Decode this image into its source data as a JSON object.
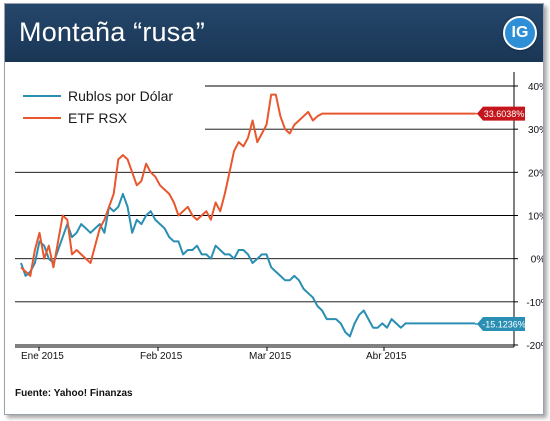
{
  "header": {
    "title": "Montaña “rusa”",
    "logo": "IG",
    "background": "#1f3d5f"
  },
  "source": "Fuente: Yahoo! Finanzas",
  "chart_data": {
    "type": "line",
    "title": "Montaña “rusa”",
    "xlabel": "",
    "ylabel": "",
    "x_tick_labels": [
      "Ene 2015",
      "Feb 2015",
      "Mar 2015",
      "Abr 2015"
    ],
    "y_tick_labels": [
      "40%",
      "30%",
      "20%",
      "10%",
      "0%",
      "-10%",
      "-20%"
    ],
    "y_ticks": [
      40,
      30,
      20,
      10,
      0,
      -10,
      -20
    ],
    "ylim": [
      -20,
      40
    ],
    "x_range": [
      0,
      100
    ],
    "grid": "horizontal",
    "y_axis_side": "right",
    "legend_position": "top-left",
    "series": [
      {
        "name": "Rublos por Dólar",
        "color": "#2a8fb3",
        "end_label": "-15.1236%",
        "x": [
          0,
          1,
          2,
          3,
          4,
          5,
          6,
          7,
          8,
          9,
          10,
          11,
          12,
          13,
          14,
          15,
          16,
          17,
          18,
          19,
          20,
          21,
          22,
          23,
          24,
          25,
          26,
          27,
          28,
          29,
          30,
          31,
          32,
          33,
          34,
          35,
          36,
          37,
          38,
          39,
          40,
          41,
          42,
          43,
          44,
          45,
          46,
          47,
          48,
          49,
          50,
          51,
          52,
          53,
          54,
          55,
          56,
          57,
          58,
          59,
          60,
          61,
          62,
          63,
          64,
          65,
          66,
          67,
          68,
          69,
          70,
          71,
          72,
          73,
          74,
          75,
          76,
          77,
          78,
          79,
          80,
          81,
          82,
          83,
          84,
          85,
          86,
          87,
          88,
          89,
          90,
          91,
          92,
          93,
          94,
          95,
          96,
          97,
          98
        ],
        "values": [
          -1,
          -4,
          -3,
          -1,
          4,
          3,
          0,
          -1,
          2,
          5,
          8,
          5,
          6,
          8,
          7,
          6,
          7,
          8,
          6,
          12,
          11,
          12,
          15,
          12,
          6,
          9,
          8,
          10,
          11,
          9,
          8,
          7,
          5,
          4,
          4,
          1,
          2,
          2,
          3,
          1,
          1,
          0,
          3,
          2,
          1,
          1,
          0,
          2,
          2,
          1,
          -1,
          0,
          1,
          1,
          -2,
          -3,
          -4,
          -5,
          -5,
          -4,
          -5,
          -7,
          -8,
          -9,
          -11,
          -12,
          -14,
          -14,
          -14,
          -15,
          -17,
          -18,
          -15,
          -13,
          -12,
          -14,
          -16,
          -16,
          -15,
          -16,
          -14,
          -15,
          -16,
          -15,
          -15,
          -15,
          -15,
          -15,
          -15,
          -15,
          -15,
          -15,
          -15,
          -15,
          -15,
          -15,
          -15,
          -15,
          -15
        ]
      },
      {
        "name": "ETF RSX",
        "color": "#e8572e",
        "end_label": "33.6038%",
        "x": [
          0,
          1,
          2,
          3,
          4,
          5,
          6,
          7,
          8,
          9,
          10,
          11,
          12,
          13,
          14,
          15,
          16,
          17,
          18,
          19,
          20,
          21,
          22,
          23,
          24,
          25,
          26,
          27,
          28,
          29,
          30,
          31,
          32,
          33,
          34,
          35,
          36,
          37,
          38,
          39,
          40,
          41,
          42,
          43,
          44,
          45,
          46,
          47,
          48,
          49,
          50,
          51,
          52,
          53,
          54,
          55,
          56,
          57,
          58,
          59,
          60,
          61,
          62,
          63,
          64,
          65,
          66,
          67,
          68,
          69,
          70,
          71,
          72,
          73,
          74,
          75,
          76,
          77,
          78,
          79,
          80,
          81,
          82,
          83,
          84,
          85,
          86,
          87,
          88,
          89,
          90,
          91,
          92,
          93,
          94,
          95,
          96,
          97,
          98
        ],
        "values": [
          -2,
          -3,
          -4,
          2,
          6,
          0,
          3,
          -2,
          4,
          10,
          9,
          1,
          2,
          1,
          0,
          -1,
          3,
          7,
          9,
          12,
          15,
          23,
          24,
          23,
          20,
          17,
          18,
          22,
          20,
          19,
          17,
          16,
          15,
          13,
          10,
          11,
          12,
          10,
          9,
          10,
          11,
          9,
          13,
          11,
          15,
          20,
          25,
          27,
          26,
          28,
          32,
          27,
          29,
          31,
          38,
          38,
          33,
          30,
          29,
          31,
          32,
          33,
          34,
          32,
          33,
          33.6038,
          33.6,
          33.6,
          33.6,
          33.6,
          33.6,
          33.6,
          33.6,
          33.6,
          33.6,
          33.6,
          33.6,
          33.6,
          33.6,
          33.6,
          33.6,
          33.6,
          33.6,
          33.6,
          33.6,
          33.6,
          33.6,
          33.6,
          33.6,
          33.6,
          33.6,
          33.6,
          33.6,
          33.6,
          33.6,
          33.6,
          33.6,
          33.6,
          33.6
        ]
      }
    ]
  }
}
